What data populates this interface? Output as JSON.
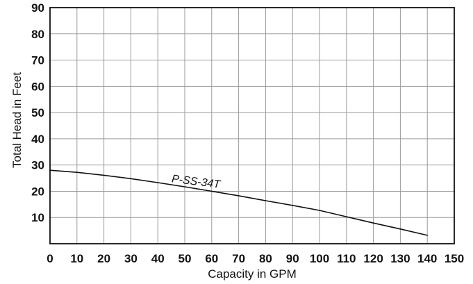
{
  "chart_data": {
    "type": "line",
    "xlabel": "Capacity in GPM",
    "ylabel": "Total Head in Feet",
    "xlim": [
      0,
      150
    ],
    "ylim": [
      0,
      90
    ],
    "grid": true,
    "x_ticks": [
      "0",
      "10",
      "20",
      "30",
      "40",
      "50",
      "60",
      "70",
      "80",
      "90",
      "100",
      "110",
      "120",
      "130",
      "140",
      "150"
    ],
    "y_ticks": [
      "10",
      "20",
      "30",
      "40",
      "50",
      "60",
      "70",
      "80",
      "90"
    ],
    "series": [
      {
        "name": "P-SS-34T",
        "x": [
          0,
          10,
          20,
          30,
          40,
          50,
          60,
          70,
          80,
          90,
          100,
          110,
          120,
          130,
          140
        ],
        "y": [
          28,
          27.2,
          26.1,
          24.8,
          23.3,
          21.7,
          20,
          18.3,
          16.4,
          14.6,
          12.7,
          10.3,
          7.9,
          5.6,
          3.2
        ]
      }
    ]
  }
}
